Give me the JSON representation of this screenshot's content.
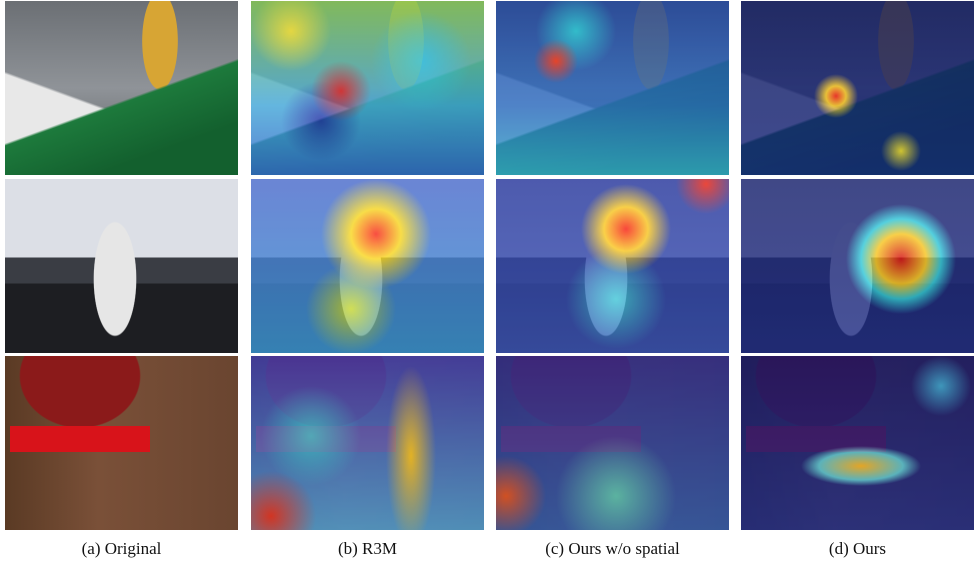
{
  "captions": [
    "(a) Original",
    "(b) R3M",
    "(c) Ours w/o spatial",
    "(d) Ours"
  ]
}
